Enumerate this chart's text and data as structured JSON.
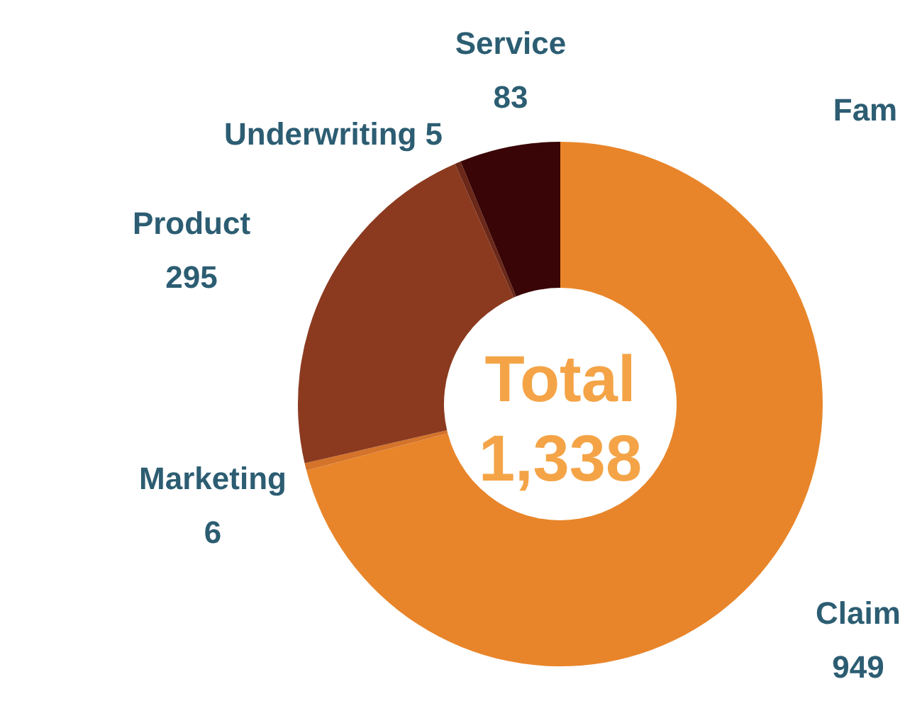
{
  "chart_data": {
    "type": "donut",
    "categories": [
      "Claim",
      "Marketing",
      "Product",
      "Underwriting",
      "Service"
    ],
    "values": [
      949,
      6,
      295,
      5,
      83
    ],
    "colors": [
      "#e8852a",
      "#d4732a",
      "#8b3a1f",
      "#6b2818",
      "#3a0506"
    ],
    "data_labels": true,
    "annotations": [
      "Total",
      "1,338",
      "Fam"
    ]
  }
}
